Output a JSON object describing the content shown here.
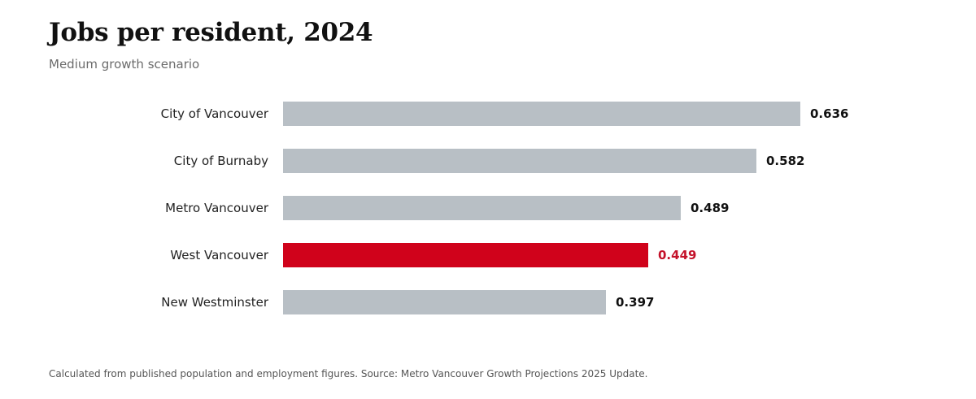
{
  "header": {
    "title": "Jobs per resident, 2024",
    "subtitle": "Medium growth scenario"
  },
  "chart_data": {
    "type": "bar",
    "orientation": "horizontal",
    "title": "Jobs per resident, 2024",
    "subtitle": "Medium growth scenario",
    "categories": [
      "City of Vancouver",
      "City of Burnaby",
      "Metro Vancouver",
      "West Vancouver",
      "New Westminster"
    ],
    "values": [
      0.636,
      0.582,
      0.489,
      0.449,
      0.397
    ],
    "value_labels": [
      "0.636",
      "0.582",
      "0.489",
      "0.449",
      "0.397"
    ],
    "highlight_category": "West Vancouver",
    "xlim": [
      0,
      0.7
    ],
    "xlabel": "",
    "ylabel": "",
    "grid": false,
    "legend": "none",
    "colors": {
      "bar": "#b8bfc5",
      "highlight": "#d0021b",
      "label": "#111111",
      "highlight_label": "#c4122a"
    }
  },
  "footer": {
    "note": "Calculated from published population and employment figures. Source: Metro Vancouver Growth Projections 2025 Update."
  }
}
